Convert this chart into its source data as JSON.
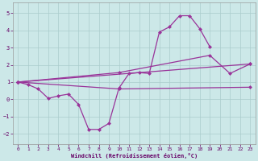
{
  "bg_color": "#cce8e8",
  "line_color": "#993399",
  "grid_color": "#aacccc",
  "xlim": [
    -0.5,
    23.5
  ],
  "ylim": [
    -2.6,
    5.6
  ],
  "yticks": [
    -2,
    -1,
    0,
    1,
    2,
    3,
    4,
    5
  ],
  "xticks": [
    0,
    1,
    2,
    3,
    4,
    5,
    6,
    7,
    8,
    9,
    10,
    11,
    12,
    13,
    14,
    15,
    16,
    17,
    18,
    19,
    20,
    21,
    22,
    23
  ],
  "xlabel": "Windchill (Refroidissement éolien,°C)",
  "line1_x": [
    0,
    1,
    2,
    3,
    4,
    5,
    6,
    7,
    8,
    9,
    10,
    11,
    12,
    13,
    14,
    15,
    16,
    17,
    18,
    19
  ],
  "line1_y": [
    1.0,
    0.85,
    0.6,
    0.05,
    0.2,
    0.3,
    -0.3,
    -1.75,
    -1.75,
    -1.4,
    0.65,
    1.5,
    1.55,
    1.5,
    3.9,
    4.2,
    4.85,
    4.85,
    4.1,
    3.05
  ],
  "line2_x": [
    0,
    23
  ],
  "line2_y": [
    1.0,
    2.05
  ],
  "line3_x": [
    0,
    10,
    19,
    21,
    23
  ],
  "line3_y": [
    1.0,
    1.55,
    2.55,
    1.5,
    2.05
  ],
  "line4_x": [
    0,
    10,
    23
  ],
  "line4_y": [
    1.0,
    0.6,
    0.7
  ]
}
